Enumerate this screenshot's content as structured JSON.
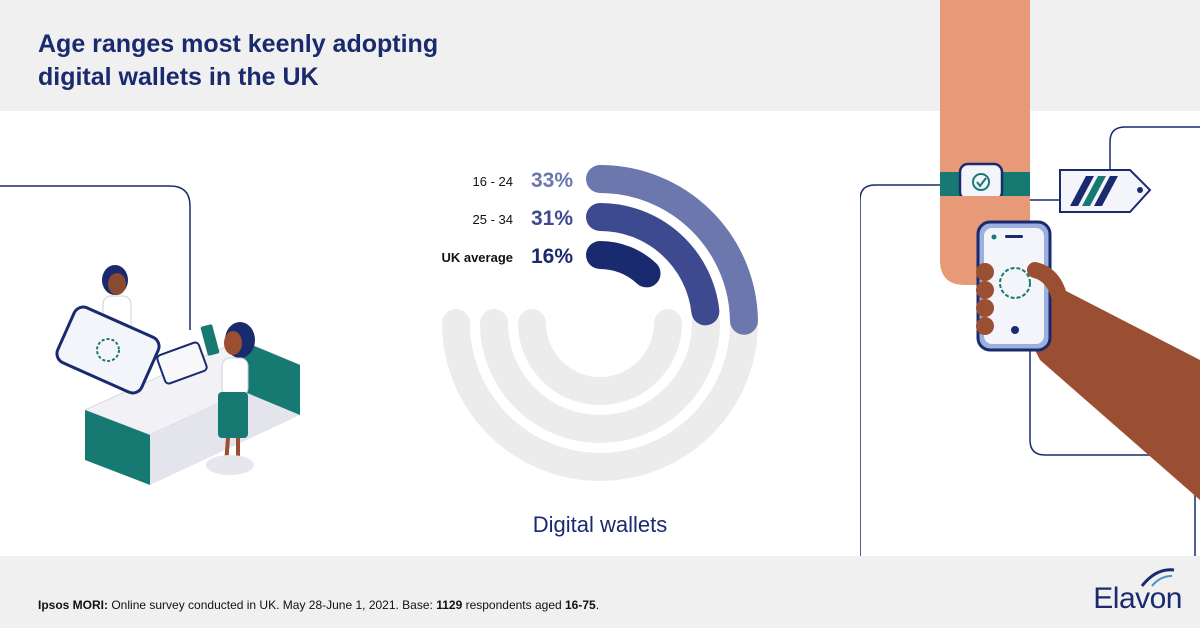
{
  "title_lines": [
    "Age ranges most keenly adopting",
    "digital wallets in the UK"
  ],
  "footer": {
    "source_bold": "Ipsos MORI:",
    "source_text_1": " Online survey conducted in UK. May 28-June 1, 2021. Base: ",
    "base_count": "1129",
    "source_text_2": " respondents aged ",
    "age_range": "16-75",
    "source_end": "."
  },
  "brand": "Elavon",
  "chart_data": {
    "type": "radial-bar",
    "title": "Age ranges most keenly adopting digital wallets in the UK",
    "xlabel": "Digital wallets",
    "unit": "%",
    "max": 100,
    "series": [
      {
        "category": "16 - 24",
        "value": 33,
        "label": "33%",
        "color": "#6b77ad"
      },
      {
        "category": "25 - 34",
        "value": 31,
        "label": "31%",
        "color": "#3e4a90"
      },
      {
        "category": "UK average",
        "value": 16,
        "label": "16%",
        "color": "#1a2a6e"
      }
    ],
    "track_color": "#ececec"
  },
  "colors": {
    "navy": "#1a2a6e",
    "teal": "#167a72",
    "skin_light": "#e89a78",
    "skin_dark": "#9a4e32"
  },
  "icons": [
    "fingerprint-icon",
    "checkmark-icon",
    "payment-tag-icon"
  ]
}
